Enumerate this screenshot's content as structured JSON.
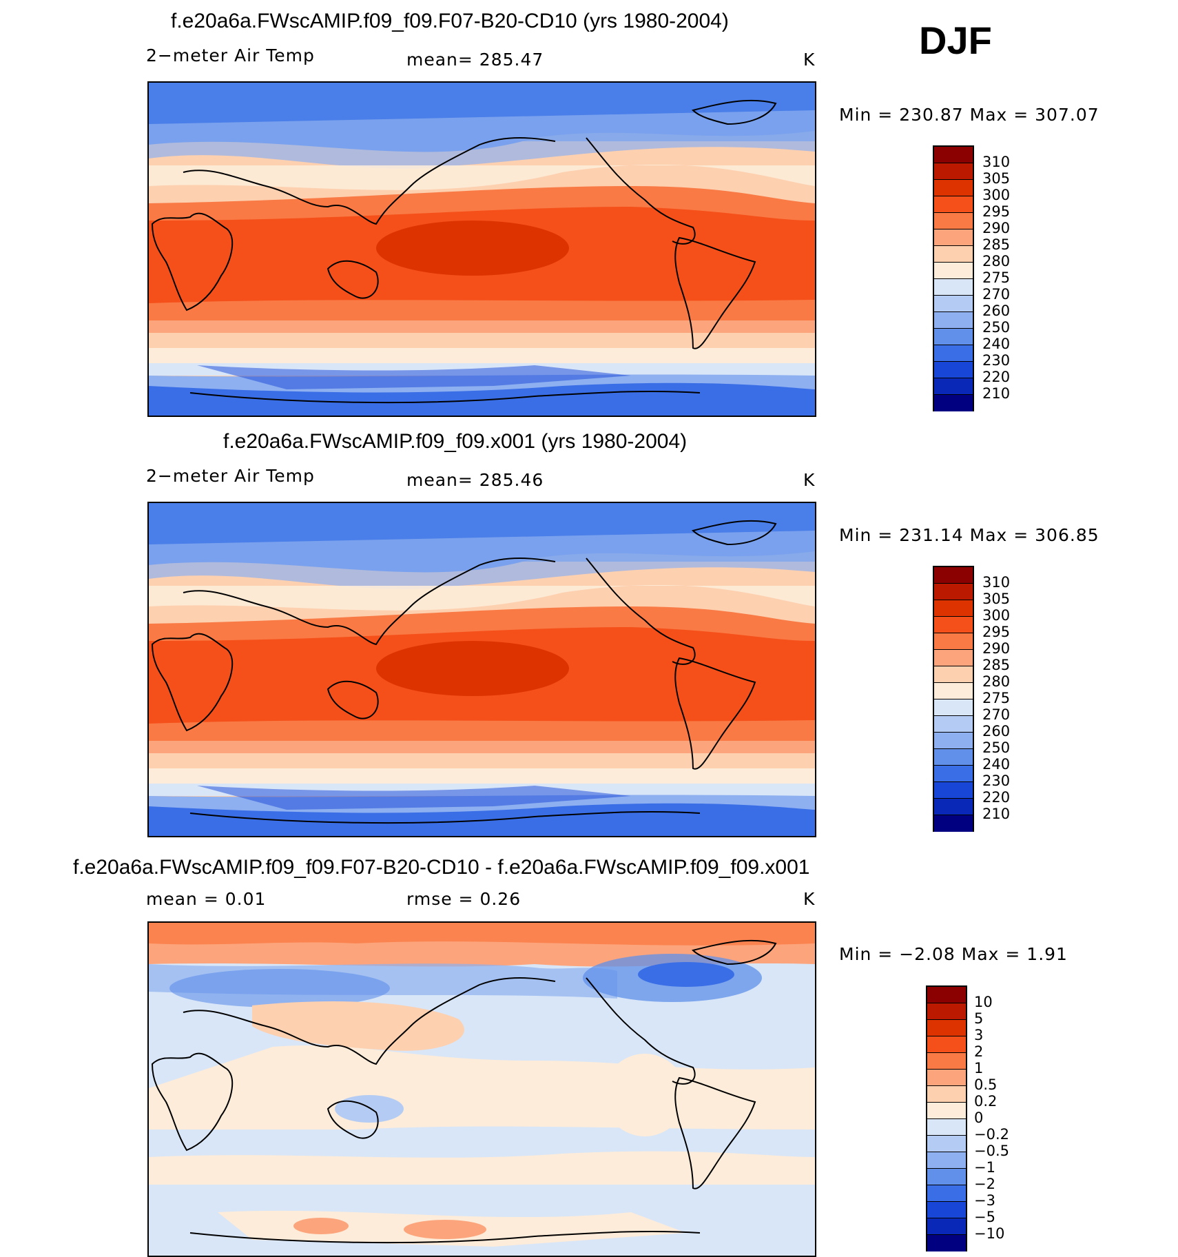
{
  "season": "DJF",
  "panels": [
    {
      "title": "f.e20a6a.FWscAMIP.f09_f09.F07-B20-CD10 (yrs 1980-2004)",
      "variable": "2−meter Air Temp",
      "stat": "mean=  285.47",
      "units": "K",
      "minmax": "Min  =  230.87  Max  =  307.07",
      "colorbar_levels": [
        "310",
        "305",
        "300",
        "295",
        "290",
        "285",
        "280",
        "275",
        "270",
        "260",
        "250",
        "240",
        "230",
        "220",
        "210"
      ],
      "colors": [
        "#8b0000",
        "#bb1a00",
        "#dd3300",
        "#f5501a",
        "#fa7a45",
        "#fca57c",
        "#fdd0b0",
        "#fdecd9",
        "#d8e6f8",
        "#b4ccf4",
        "#8eb0f0",
        "#6090ea",
        "#3a6ee6",
        "#1846d6",
        "#0a28b8",
        "#000080"
      ]
    },
    {
      "title": "f.e20a6a.FWscAMIP.f09_f09.x001 (yrs 1980-2004)",
      "variable": "2−meter Air Temp",
      "stat": "mean=  285.46",
      "units": "K",
      "minmax": "Min  =  231.14  Max  =  306.85",
      "colorbar_levels": [
        "310",
        "305",
        "300",
        "295",
        "290",
        "285",
        "280",
        "275",
        "270",
        "260",
        "250",
        "240",
        "230",
        "220",
        "210"
      ],
      "colors": [
        "#8b0000",
        "#bb1a00",
        "#dd3300",
        "#f5501a",
        "#fa7a45",
        "#fca57c",
        "#fdd0b0",
        "#fdecd9",
        "#d8e6f8",
        "#b4ccf4",
        "#8eb0f0",
        "#6090ea",
        "#3a6ee6",
        "#1846d6",
        "#0a28b8",
        "#000080"
      ]
    },
    {
      "title": "f.e20a6a.FWscAMIP.f09_f09.F07-B20-CD10 - f.e20a6a.FWscAMIP.f09_f09.x001",
      "variable": "mean =     0.01",
      "stat": "rmse =     0.26",
      "units": "K",
      "minmax": "Min  =    −2.08  Max  =     1.91",
      "colorbar_levels": [
        "10",
        "5",
        "3",
        "2",
        "1",
        "0.5",
        "0.2",
        "0",
        "−0.2",
        "−0.5",
        "−1",
        "−2",
        "−3",
        "−5",
        "−10"
      ],
      "colors": [
        "#8b0000",
        "#bb1a00",
        "#dd3300",
        "#f5501a",
        "#fa7a45",
        "#fca57c",
        "#fdd0b0",
        "#fdecd9",
        "#d8e6f8",
        "#b4ccf4",
        "#8eb0f0",
        "#6090ea",
        "#3a6ee6",
        "#1846d6",
        "#0a28b8",
        "#000080"
      ]
    }
  ]
}
